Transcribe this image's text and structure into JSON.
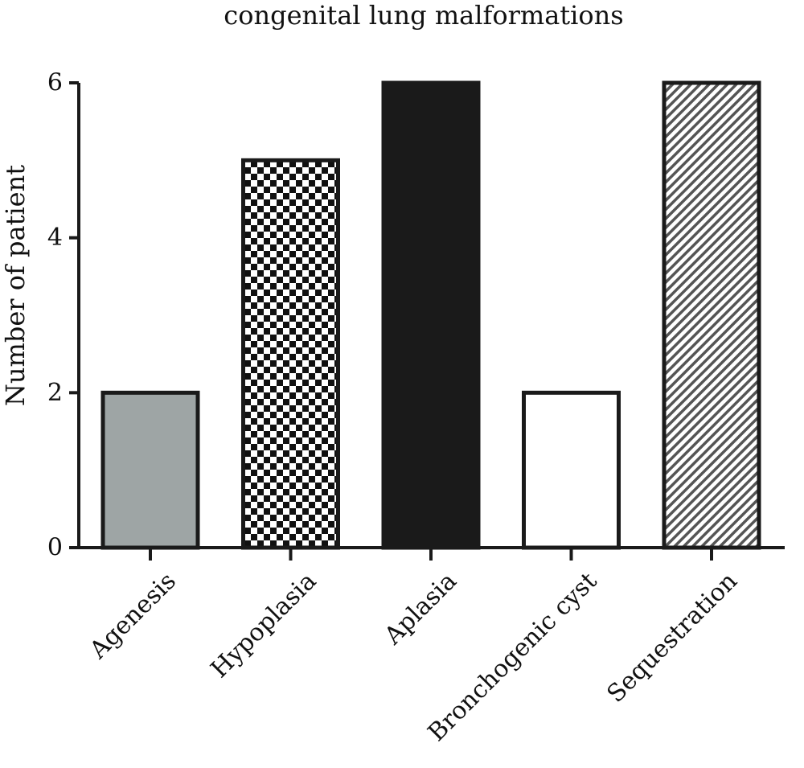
{
  "chart_data": {
    "type": "bar",
    "title": "congenital lung malformations",
    "xlabel": "",
    "ylabel": "Number of patient",
    "categories": [
      "Agenesis",
      "Hypoplasia",
      "Aplasia",
      "Bronchogenic cyst",
      "Sequestration"
    ],
    "values": [
      2,
      5,
      6,
      2,
      6
    ],
    "fills": [
      "solid-gray",
      "checkerboard",
      "solid-black",
      "white",
      "diagonal-hatch"
    ],
    "colors": {
      "gray": "#9ea5a5",
      "black": "#1a1a1a",
      "edge": "#1a1a1a"
    },
    "ylim": [
      0,
      6
    ],
    "yticks": [
      0,
      2,
      4,
      6
    ],
    "grid": false,
    "legend": "none"
  }
}
